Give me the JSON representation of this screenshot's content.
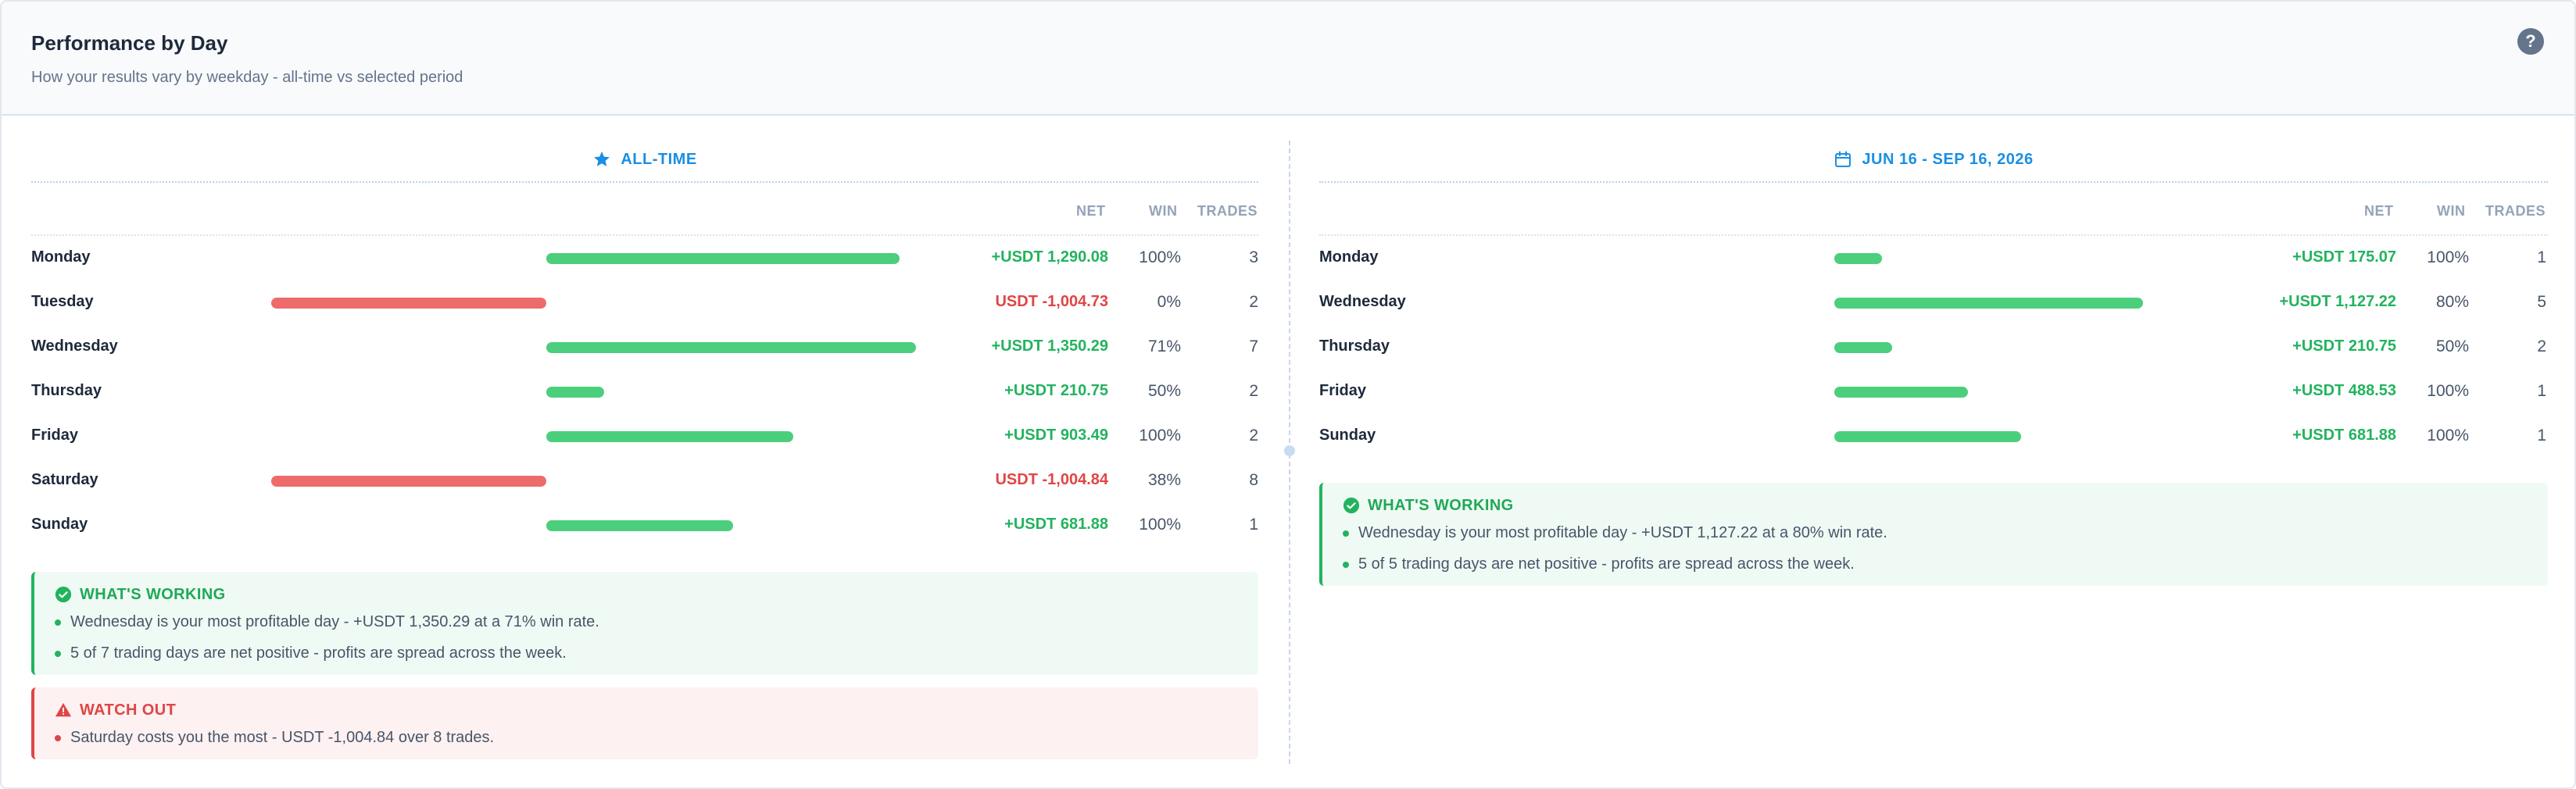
{
  "header": {
    "title": "Performance by Day",
    "subtitle": "How your results vary by weekday - all-time vs selected period",
    "help_icon": "question-circle-icon"
  },
  "columns": {
    "net": "NET",
    "win": "WIN",
    "trades": "TRADES"
  },
  "colors": {
    "positive": "#4ccf7d",
    "negative": "#ee6b6b",
    "accent": "#1a8fe3",
    "good_text": "#22b35e",
    "bad_text": "#e04545"
  },
  "panels": {
    "all_time": {
      "label": "ALL-TIME",
      "icon": "star-icon",
      "rows": [
        {
          "day": "Monday",
          "net": "+USDT 1,290.08",
          "net_value": 1290.08,
          "win": "100%",
          "trades": "3"
        },
        {
          "day": "Tuesday",
          "net": "USDT -1,004.73",
          "net_value": -1004.73,
          "win": "0%",
          "trades": "2"
        },
        {
          "day": "Wednesday",
          "net": "+USDT 1,350.29",
          "net_value": 1350.29,
          "win": "71%",
          "trades": "7"
        },
        {
          "day": "Thursday",
          "net": "+USDT 210.75",
          "net_value": 210.75,
          "win": "50%",
          "trades": "2"
        },
        {
          "day": "Friday",
          "net": "+USDT 903.49",
          "net_value": 903.49,
          "win": "100%",
          "trades": "2"
        },
        {
          "day": "Saturday",
          "net": "USDT -1,004.84",
          "net_value": -1004.84,
          "win": "38%",
          "trades": "8"
        },
        {
          "day": "Sunday",
          "net": "+USDT 681.88",
          "net_value": 681.88,
          "win": "100%",
          "trades": "1"
        }
      ],
      "working": {
        "title": "WHAT'S WORKING",
        "icon": "check-circle-icon",
        "items": [
          "Wednesday is your most profitable day - +USDT 1,350.29 at a 71% win rate.",
          "5 of 7 trading days are net positive - profits are spread across the week."
        ]
      },
      "watch": {
        "title": "WATCH OUT",
        "icon": "warning-triangle-icon",
        "items": [
          "Saturday costs you the most - USDT -1,004.84 over 8 trades."
        ]
      }
    },
    "period": {
      "label": "JUN 16 - SEP 16, 2026",
      "icon": "calendar-icon",
      "rows": [
        {
          "day": "Monday",
          "net": "+USDT 175.07",
          "net_value": 175.07,
          "win": "100%",
          "trades": "1"
        },
        {
          "day": "Wednesday",
          "net": "+USDT 1,127.22",
          "net_value": 1127.22,
          "win": "80%",
          "trades": "5"
        },
        {
          "day": "Thursday",
          "net": "+USDT 210.75",
          "net_value": 210.75,
          "win": "50%",
          "trades": "2"
        },
        {
          "day": "Friday",
          "net": "+USDT 488.53",
          "net_value": 488.53,
          "win": "100%",
          "trades": "1"
        },
        {
          "day": "Sunday",
          "net": "+USDT 681.88",
          "net_value": 681.88,
          "win": "100%",
          "trades": "1"
        }
      ],
      "working": {
        "title": "WHAT'S WORKING",
        "icon": "check-circle-icon",
        "items": [
          "Wednesday is your most profitable day - +USDT 1,127.22 at a 80% win rate.",
          "5 of 5 trading days are net positive - profits are spread across the week."
        ]
      }
    }
  }
}
